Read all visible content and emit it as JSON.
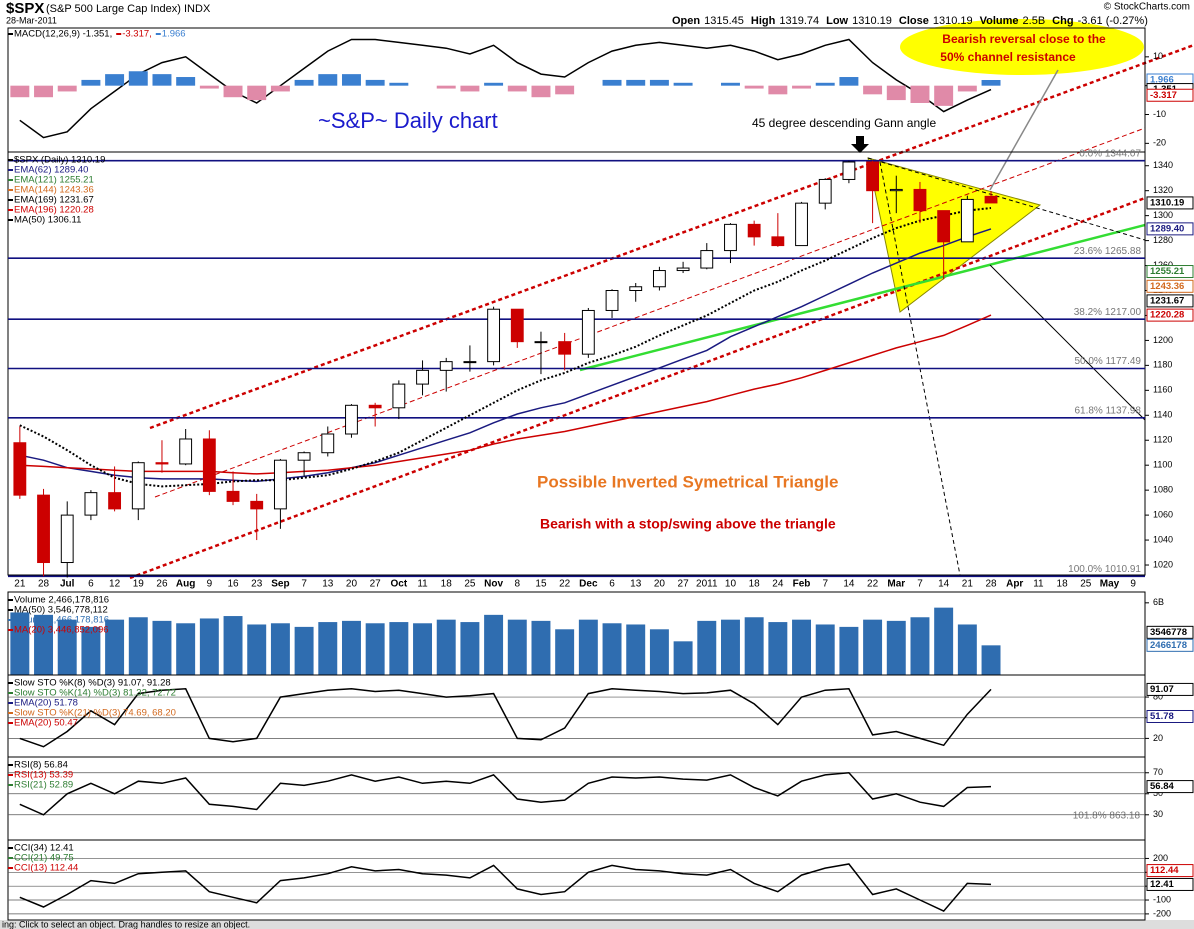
{
  "header": {
    "symbol": "$SPX",
    "name": "(S&P 500 Large Cap Index) INDX",
    "date": "28-Mar-2011",
    "copyright": "© StockCharts.com",
    "quote": [
      {
        "label": "Open",
        "value": "1315.45"
      },
      {
        "label": "High",
        "value": "1319.74"
      },
      {
        "label": "Low",
        "value": "1310.19"
      },
      {
        "label": "Close",
        "value": "1310.19"
      },
      {
        "label": "Volume",
        "value": "2.5B"
      },
      {
        "label": "Chg",
        "value": "-3.61 (-0.27%)"
      }
    ]
  },
  "annotations": {
    "title": "~S&P~ Daily chart",
    "gann": "45 degree descending Gann angle",
    "reversal_1": "Bearish reversal close to the",
    "reversal_2": "50% channel resistance",
    "triangle": "Possible Inverted Symetrical Triangle",
    "stop": "Bearish with a stop/swing above the triangle",
    "rsi_note": "101.8% 863.18"
  },
  "status_bar": "ing: Click to select an object. Drag handles to resize an object.",
  "chart_data": [
    {
      "type": "line",
      "legend_inline": true,
      "ylim": [
        -23,
        20
      ],
      "yticks": [
        10,
        0,
        -10,
        -20
      ],
      "grid": false,
      "series": [
        {
          "name": "MACD(12,26,9) -1.351,",
          "color": "#000000",
          "values": [
            -12,
            -18,
            -16,
            -8,
            -2,
            4,
            8,
            10,
            4,
            -2,
            -6,
            0,
            6,
            12,
            16,
            16,
            15,
            14,
            13,
            11,
            14,
            8,
            4,
            3,
            8,
            12,
            14,
            15,
            14,
            13,
            14,
            12,
            9,
            11,
            14,
            16,
            8,
            2,
            -3,
            -9,
            -5,
            -1.351,
            null,
            null,
            null,
            null,
            null,
            null
          ]
        },
        {
          "name": "-3.317,",
          "color": "#cc0000"
        },
        {
          "name": "1.966",
          "color": "#3a7fd0",
          "negative_color": "#e08aa8",
          "style": "bar",
          "values": [
            -4,
            -4,
            -2,
            2,
            4,
            5,
            4,
            3,
            -1,
            -4,
            -5,
            -2,
            2,
            4,
            4,
            2,
            1,
            0,
            -1,
            -2,
            1,
            -2,
            -4,
            -3,
            0,
            2,
            2,
            2,
            1,
            0,
            1,
            -1,
            -3,
            -1,
            1,
            3,
            -3,
            -5,
            -6,
            -7,
            -2,
            1.966,
            null,
            null,
            null,
            null,
            null,
            null
          ]
        }
      ],
      "right_labels": [
        {
          "value": 1.966,
          "label": "1.966",
          "color": "#3a7fd0"
        },
        {
          "value": -1.351,
          "label": "-1.351",
          "color": "#000000"
        },
        {
          "value": -3.317,
          "label": "-3.317",
          "color": "#cc0000"
        }
      ]
    },
    {
      "type": "candlestick",
      "up_color": "#000000",
      "down_color": "#cc0000",
      "ylim": [
        1012,
        1351
      ],
      "grid": false,
      "yticks": [
        1020,
        1040,
        1060,
        1080,
        1100,
        1120,
        1140,
        1160,
        1180,
        1200,
        1220,
        1240,
        1260,
        1280,
        1300,
        1320,
        1340
      ],
      "categories": [
        "21",
        "28",
        "Jul",
        "6",
        "12",
        "19",
        "26",
        "Aug",
        "9",
        "16",
        "23",
        "Sep",
        "7",
        "13",
        "20",
        "27",
        "Oct",
        "11",
        "18",
        "25",
        "Nov",
        "8",
        "15",
        "22",
        "Dec",
        "6",
        "13",
        "20",
        "27",
        "2011",
        "10",
        "18",
        "24",
        "Feb",
        "7",
        "14",
        "22",
        "Mar",
        "7",
        "14",
        "21",
        "28",
        "Apr",
        "11",
        "18",
        "25",
        "May",
        "9"
      ],
      "open": [
        1118,
        1076,
        1022,
        1060,
        1078,
        1065,
        1102,
        1101,
        1121,
        1079,
        1071,
        1065,
        1104,
        1110,
        1125,
        1148,
        1146,
        1165,
        1176,
        1183,
        1183,
        1225,
        1199,
        1199,
        1189,
        1224,
        1240,
        1243,
        1256,
        1258,
        1272,
        1293,
        1283,
        1276,
        1310,
        1329,
        1343,
        1320,
        1321,
        1304,
        1279,
        1315.45,
        null,
        null,
        null,
        null,
        null,
        null
      ],
      "high": [
        1131,
        1081,
        1071,
        1080,
        1099,
        1103,
        1120,
        1129,
        1128,
        1095,
        1077,
        1105,
        1111,
        1131,
        1149,
        1150,
        1168,
        1184,
        1186,
        1196,
        1227,
        1225,
        1207,
        1206,
        1226,
        1241,
        1246,
        1259,
        1263,
        1278,
        1294,
        1296,
        1302,
        1311,
        1330,
        1344,
        1344,
        1332,
        1327,
        1304,
        1316,
        1319.74,
        null,
        null,
        null,
        null,
        null,
        null
      ],
      "low": [
        1073,
        1011,
        1010,
        1056,
        1063,
        1056,
        1094,
        1100,
        1076,
        1068,
        1040,
        1049,
        1091,
        1107,
        1122,
        1131,
        1137,
        1156,
        1159,
        1175,
        1180,
        1194,
        1173,
        1176,
        1186,
        1218,
        1231,
        1240,
        1254,
        1257,
        1262,
        1276,
        1275,
        1276,
        1305,
        1326,
        1294,
        1302,
        1294,
        1249,
        1279,
        1310.19,
        null,
        null,
        null,
        null,
        null,
        null
      ],
      "close": [
        1076,
        1022,
        1060,
        1078,
        1065,
        1102,
        1101,
        1121,
        1079,
        1071,
        1065,
        1104,
        1110,
        1125,
        1148,
        1146,
        1165,
        1176,
        1183,
        1183,
        1225,
        1199,
        1199,
        1189,
        1224,
        1240,
        1243,
        1256,
        1258,
        1272,
        1293,
        1283,
        1276,
        1310,
        1329,
        1343,
        1320,
        1321,
        1304,
        1279,
        1313,
        1310.19,
        null,
        null,
        null,
        null,
        null,
        null
      ],
      "series": [
        {
          "name": "$SPX (Daily) 1310.19",
          "color": "#000000"
        },
        {
          "name": "EMA(62) 1289.40",
          "color": "#1a1a80",
          "values": [
            1108,
            1104,
            1098,
            1095,
            1092,
            1090,
            1089,
            1089,
            1089,
            1088,
            1087,
            1089,
            1091,
            1094,
            1098,
            1102,
            1108,
            1114,
            1120,
            1126,
            1134,
            1141,
            1146,
            1150,
            1157,
            1164,
            1171,
            1178,
            1185,
            1192,
            1203,
            1211,
            1219,
            1227,
            1236,
            1245,
            1254,
            1262,
            1270,
            1276,
            1283,
            1289.4,
            null,
            null,
            null,
            null,
            null,
            null
          ]
        },
        {
          "name": "EMA(121) 1255.21",
          "color": "#2e7d32"
        },
        {
          "name": "EMA(144) 1243.36",
          "color": "#d2691e"
        },
        {
          "name": "EMA(169) 1231.67",
          "color": "#000000"
        },
        {
          "name": "EMA(196) 1220.28",
          "color": "#cc0000",
          "values": [
            1100,
            1099,
            1098,
            1097,
            1096,
            1095,
            1095,
            1095,
            1095,
            1094,
            1093,
            1094,
            1095,
            1096,
            1098,
            1100,
            1103,
            1106,
            1109,
            1112,
            1117,
            1121,
            1124,
            1127,
            1131,
            1135,
            1139,
            1143,
            1147,
            1151,
            1156,
            1161,
            1165,
            1170,
            1176,
            1182,
            1188,
            1194,
            1199,
            1204,
            1212,
            1220.28,
            null,
            null,
            null,
            null,
            null,
            null
          ]
        },
        {
          "name": "MA(50) 1306.11",
          "color": "#000000",
          "style": "dotted",
          "values": [
            1132,
            1123,
            1112,
            1100,
            1090,
            1085,
            1083,
            1084,
            1085,
            1087,
            1088,
            1088,
            1090,
            1092,
            1097,
            1103,
            1110,
            1120,
            1130,
            1140,
            1150,
            1160,
            1168,
            1174,
            1182,
            1188,
            1195,
            1204,
            1212,
            1220,
            1230,
            1240,
            1247,
            1256,
            1264,
            1273,
            1282,
            1290,
            1296,
            1300,
            1304,
            1306.11,
            null,
            null,
            null,
            null,
            null,
            null
          ]
        }
      ],
      "fib_levels": [
        {
          "value": 1344.07,
          "label": "0.0% 1344.07"
        },
        {
          "value": 1265.88,
          "label": "23.6% 1265.88"
        },
        {
          "value": 1217,
          "label": "38.2% 1217.00"
        },
        {
          "value": 1177.49,
          "label": "50.0% 1177.49"
        },
        {
          "value": 1137.98,
          "label": "61.8% 1137.98"
        },
        {
          "value": 1010.91,
          "label": "100.0% 1010.91"
        }
      ],
      "fib_color": "#101080",
      "right_labels": [
        {
          "value": 1310.19,
          "label": "1310.19",
          "color": "#000000"
        },
        {
          "value": 1289.4,
          "label": "1289.40",
          "color": "#1a1a80"
        },
        {
          "value": 1255.21,
          "label": "1255.21",
          "color": "#2e7d32"
        },
        {
          "value": 1243.36,
          "label": "1243.36",
          "color": "#d2691e"
        },
        {
          "value": 1231.67,
          "label": "1231.67",
          "color": "#000000"
        },
        {
          "value": 1220.28,
          "label": "1220.28",
          "color": "#cc0000"
        }
      ]
    },
    {
      "type": "bar",
      "ylim": [
        0,
        6.9
      ],
      "yticks": [
        {
          "value": 6,
          "label": "6B"
        }
      ],
      "grid": false,
      "series": [
        {
          "name": "Volume 2,466,178,816",
          "color": "#000000"
        },
        {
          "name": "MA(50) 3,546,778,112",
          "color": "#000000"
        },
        {
          "name": "Volume 2,466,178,816",
          "color": "#2f6db0",
          "style": "bar",
          "values": [
            5.2,
            5.0,
            4.6,
            4.0,
            4.6,
            4.8,
            4.5,
            4.3,
            4.7,
            4.9,
            4.2,
            4.3,
            4.0,
            4.4,
            4.5,
            4.3,
            4.4,
            4.3,
            4.6,
            4.4,
            5.0,
            4.6,
            4.5,
            3.8,
            4.6,
            4.3,
            4.2,
            3.8,
            2.8,
            4.5,
            4.6,
            4.8,
            4.4,
            4.6,
            4.2,
            4.0,
            4.6,
            4.5,
            4.8,
            5.6,
            4.2,
            2.466,
            null,
            null,
            null,
            null,
            null,
            null
          ]
        },
        {
          "name": "MA(20) 3,446,852,096",
          "color": "#cc0000"
        }
      ],
      "right_labels": [
        {
          "value": 3.546778,
          "label": "3546778",
          "color": "#000000"
        },
        {
          "value": 2.466178,
          "label": "2466178",
          "color": "#2f6db0"
        }
      ]
    },
    {
      "type": "line",
      "ylim": [
        -7,
        112
      ],
      "yticks": [
        80,
        50,
        20
      ],
      "grid": true,
      "series": [
        {
          "name": "Slow STO %K(8) %D(3) 91.07, 91.28",
          "color": "#000000",
          "values": [
            20,
            8,
            30,
            60,
            40,
            85,
            90,
            92,
            20,
            15,
            20,
            80,
            85,
            90,
            92,
            88,
            90,
            85,
            80,
            82,
            85,
            20,
            18,
            35,
            85,
            92,
            90,
            88,
            85,
            86,
            90,
            70,
            40,
            80,
            90,
            92,
            25,
            30,
            20,
            10,
            55,
            91.07,
            null,
            null,
            null,
            null,
            null,
            null
          ]
        },
        {
          "name": "Slow STO %K(14) %D(3) 81.32, 72.72",
          "color": "#2e7d32"
        },
        {
          "name": "EMA(20) 51.78",
          "color": "#1a1a80"
        },
        {
          "name": "Slow STO %K(21) %D(3) 74.69, 68.20",
          "color": "#d2691e"
        },
        {
          "name": "EMA(20) 50.47",
          "color": "#cc0000"
        }
      ],
      "right_labels": [
        {
          "value": 91.07,
          "label": "91.07",
          "color": "#000000"
        },
        {
          "value": 51.78,
          "label": "51.78",
          "color": "#1a1a80"
        }
      ]
    },
    {
      "type": "line",
      "ylim": [
        6,
        85
      ],
      "yticks": [
        70,
        50,
        30
      ],
      "grid": true,
      "series": [
        {
          "name": "RSI(8) 56.84",
          "color": "#000000",
          "values": [
            40,
            30,
            50,
            60,
            50,
            62,
            60,
            65,
            40,
            38,
            35,
            60,
            58,
            62,
            68,
            62,
            66,
            60,
            62,
            60,
            68,
            45,
            42,
            44,
            60,
            66,
            65,
            66,
            64,
            63,
            68,
            56,
            48,
            62,
            68,
            70,
            45,
            50,
            42,
            38,
            56,
            56.84,
            null,
            null,
            null,
            null,
            null,
            null
          ]
        },
        {
          "name": "RSI(13) 53.39",
          "color": "#cc0000"
        },
        {
          "name": "RSI(21) 52.89",
          "color": "#2e7d32"
        }
      ],
      "right_labels": [
        {
          "value": 56.84,
          "label": "56.84",
          "color": "#000000"
        }
      ]
    },
    {
      "type": "line",
      "ylim": [
        -244,
        333
      ],
      "yticks": [
        200,
        100,
        0,
        -100,
        -200
      ],
      "grid": true,
      "series": [
        {
          "name": "CCI(34) 12.41",
          "color": "#000000",
          "values": [
            -80,
            -150,
            -60,
            40,
            20,
            90,
            100,
            110,
            -40,
            -80,
            -120,
            40,
            60,
            90,
            140,
            110,
            120,
            90,
            80,
            60,
            150,
            -20,
            -60,
            -40,
            100,
            150,
            120,
            110,
            90,
            80,
            120,
            20,
            -40,
            80,
            130,
            160,
            -60,
            -20,
            -100,
            -180,
            20,
            12.41,
            null,
            null,
            null,
            null,
            null,
            null
          ]
        },
        {
          "name": "CCI(21) 49.75",
          "color": "#2e7d32"
        },
        {
          "name": "CCI(13) 112.44",
          "color": "#cc0000"
        }
      ],
      "right_labels": [
        {
          "value": 112.44,
          "label": "112.44",
          "color": "#cc0000"
        },
        {
          "value": 12.41,
          "label": "12.41",
          "color": "#000000"
        }
      ]
    }
  ]
}
